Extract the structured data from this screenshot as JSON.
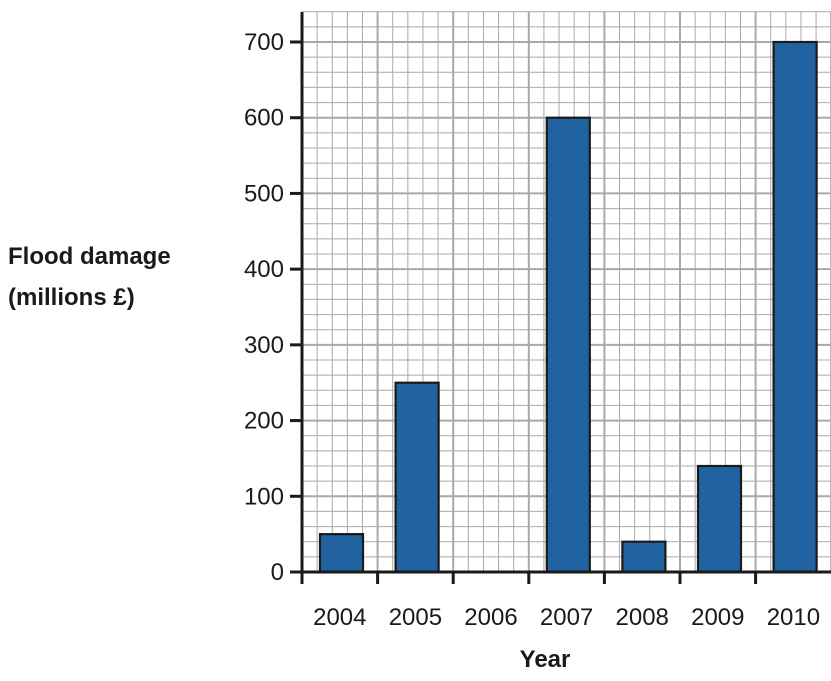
{
  "chart_data": {
    "type": "bar",
    "categories": [
      "2004",
      "2005",
      "2006",
      "2007",
      "2008",
      "2009",
      "2010"
    ],
    "values": [
      50,
      250,
      0,
      600,
      40,
      140,
      700
    ],
    "xlabel": "Year",
    "ylabel_lines": [
      "Flood damage",
      "(millions £)"
    ],
    "ylim": [
      0,
      700
    ],
    "yticks": [
      0,
      100,
      200,
      300,
      400,
      500,
      600,
      700
    ],
    "grid": true,
    "bar_color": "#2163a0",
    "bar_outline": "#1a1a1a",
    "grid_color": "#a9a9a9"
  }
}
